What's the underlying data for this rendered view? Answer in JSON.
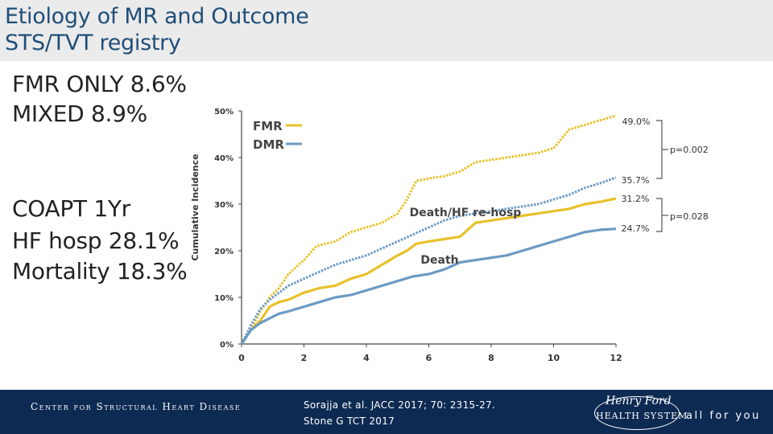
{
  "slide": {
    "title_line1": "Etiology of MR and Outcome",
    "title_line2": "STS/TVT registry",
    "stats": [
      "FMR ONLY 8.6%",
      "MIXED 8.9%",
      "COAPT 1Yr",
      "HF hosp 28.1%",
      "Mortality 18.3%"
    ]
  },
  "colors": {
    "fmr": "#e8c12a",
    "dmr": "#6b9ac4",
    "title": "#1f4e79",
    "footer_bg": "#0d2a52"
  },
  "chart_data": {
    "type": "line",
    "ylabel": "Cumulative Incidence",
    "xlim": [
      0,
      12
    ],
    "ylim": [
      0,
      50
    ],
    "x_ticks": [
      0,
      2,
      4,
      6,
      8,
      10,
      12
    ],
    "y_ticks": [
      0,
      10,
      20,
      30,
      40,
      50
    ],
    "y_tick_labels": [
      "0%",
      "10%",
      "20%",
      "30%",
      "40%",
      "50%"
    ],
    "legend": {
      "placement": "top-left",
      "entries": [
        {
          "label": "FMR",
          "color": "#e8c12a"
        },
        {
          "label": "DMR",
          "color": "#6b9ac4"
        }
      ]
    },
    "series": [
      {
        "name": "FMR",
        "group": "Death/HF re-hosp",
        "style": "dashed",
        "color": "#e8c12a",
        "x": [
          0,
          0.3,
          0.6,
          0.9,
          1.2,
          1.5,
          2.0,
          2.4,
          3.0,
          3.5,
          4.0,
          4.5,
          5.0,
          5.3,
          5.6,
          6.0,
          6.5,
          7.0,
          7.5,
          8.0,
          8.5,
          9.0,
          9.5,
          10.0,
          10.5,
          11.0,
          11.5,
          12.0
        ],
        "y": [
          0,
          3,
          7,
          10,
          12,
          15,
          18,
          21,
          22,
          24,
          25,
          26,
          28,
          31,
          35,
          35.5,
          36,
          37,
          39,
          39.5,
          40,
          40.5,
          41,
          42,
          46,
          47,
          48,
          49
        ]
      },
      {
        "name": "DMR",
        "group": "Death/HF re-hosp",
        "style": "dashed",
        "color": "#6b9ac4",
        "x": [
          0,
          0.3,
          0.6,
          0.9,
          1.2,
          1.5,
          2.0,
          2.5,
          3.0,
          3.5,
          4.0,
          4.5,
          5.0,
          5.5,
          6.0,
          6.5,
          7.0,
          7.5,
          8.0,
          8.5,
          9.0,
          9.5,
          10.0,
          10.5,
          11.0,
          11.5,
          12.0
        ],
        "y": [
          0,
          4,
          7.5,
          9.5,
          11,
          12.5,
          14,
          15.5,
          17,
          18,
          19,
          20.5,
          22,
          23.5,
          25,
          26.5,
          27.5,
          28,
          28.5,
          29,
          29.5,
          30,
          31,
          32,
          33.5,
          34.5,
          35.7
        ]
      },
      {
        "name": "FMR",
        "group": "Death",
        "style": "solid",
        "color": "#e8c12a",
        "x": [
          0,
          0.3,
          0.6,
          0.9,
          1.2,
          1.5,
          2.0,
          2.5,
          3.0,
          3.5,
          4.0,
          4.5,
          5.0,
          5.3,
          5.6,
          6.0,
          6.5,
          7.0,
          7.5,
          8.0,
          8.5,
          9.0,
          9.5,
          10.0,
          10.5,
          11.0,
          11.5,
          12.0
        ],
        "y": [
          0,
          3,
          5,
          8,
          9,
          9.5,
          11,
          12,
          12.5,
          14,
          15,
          17,
          19,
          20,
          21.5,
          22,
          22.5,
          23,
          26,
          26.5,
          27,
          27.5,
          28,
          28.5,
          29,
          30,
          30.5,
          31.2
        ]
      },
      {
        "name": "DMR",
        "group": "Death",
        "style": "solid",
        "color": "#6b9ac4",
        "x": [
          0,
          0.3,
          0.6,
          0.9,
          1.2,
          1.5,
          2.0,
          2.5,
          3.0,
          3.5,
          4.0,
          4.5,
          5.0,
          5.5,
          6.0,
          6.5,
          7.0,
          7.5,
          8.0,
          8.5,
          9.0,
          9.5,
          10.0,
          10.5,
          11.0,
          11.5,
          12.0
        ],
        "y": [
          0,
          3,
          4.5,
          5.5,
          6.5,
          7,
          8,
          9,
          10,
          10.5,
          11.5,
          12.5,
          13.5,
          14.5,
          15,
          16,
          17.5,
          18,
          18.5,
          19,
          20,
          21,
          22,
          23,
          24,
          24.5,
          24.7
        ]
      }
    ],
    "annotations": {
      "end_labels": [
        "49.0%",
        "35.7%",
        "31.2%",
        "24.7%"
      ],
      "group_labels": [
        "Death/HF re-hosp",
        "Death"
      ],
      "p_values": [
        "p=0.002",
        "p=0.028"
      ]
    }
  },
  "footer": {
    "left_text": "Center for Structural Heart Disease",
    "reference_line1": "Sorajja et al. JACC 2017; 70: 2315-27.",
    "reference_line2": "Stone G TCT 2017",
    "logo_script": "Henry Ford",
    "logo_sub": "HEALTH SYSTEM",
    "tagline": "all for you"
  }
}
